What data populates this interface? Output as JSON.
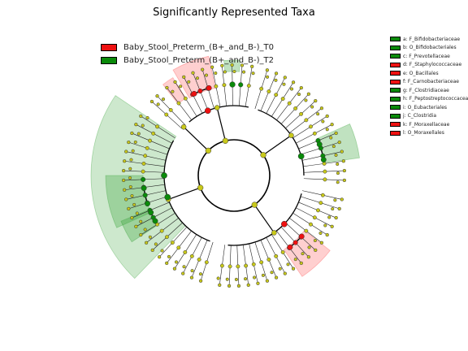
{
  "title": "Significantly Represented Taxa",
  "colors": {
    "green": "#0a8a0a",
    "red": "#ee1111",
    "yellow": "#c8c81a",
    "shade_green": "#2e9e2e",
    "shade_red": "#ff4444"
  },
  "legend": [
    {
      "label": "Baby_Stool_Preterm_(B+_and_B-)_T0",
      "color": "#ee1111"
    },
    {
      "label": "Baby_Stool_Preterm_(B+_and_B-)_T2",
      "color": "#0a8a0a"
    }
  ],
  "taxa": [
    {
      "label": "a: F_Bifidobacteriaceae",
      "color": "#0a8a0a"
    },
    {
      "label": "b: O_Bifidobacteriales",
      "color": "#0a8a0a"
    },
    {
      "label": "c: F_Prevotellaceae",
      "color": "#0a8a0a"
    },
    {
      "label": "d: F_Staphylococcaceae",
      "color": "#ee1111"
    },
    {
      "label": "e: O_Bacillales",
      "color": "#ee1111"
    },
    {
      "label": "f: F_Carnobacteriaceae",
      "color": "#ee1111"
    },
    {
      "label": "g: F_Clostridiaceae",
      "color": "#0a8a0a"
    },
    {
      "label": "h: F_Peptostreptococcaceae",
      "color": "#0a8a0a"
    },
    {
      "label": "i: O_Eubacteriales",
      "color": "#0a8a0a"
    },
    {
      "label": "j: C_Clostridia",
      "color": "#0a8a0a"
    },
    {
      "label": "k: F_Moraxellaceae",
      "color": "#ee1111"
    },
    {
      "label": "l: O_Moraxellales",
      "color": "#ee1111"
    }
  ]
}
